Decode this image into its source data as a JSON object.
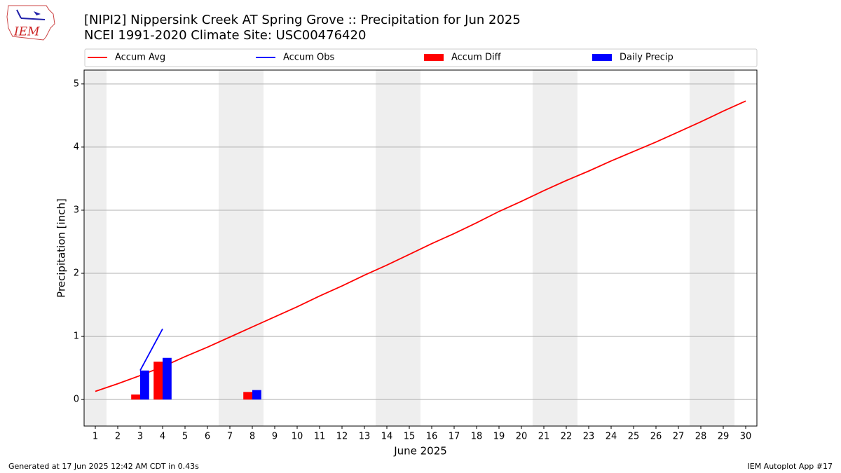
{
  "chart_data": {
    "type": "line",
    "logo_text": "IEM",
    "title": "[NIPI2] Nippersink Creek  AT Spring Grove :: Precipitation for Jun 2025",
    "subtitle": "NCEI 1991-2020 Climate Site: USC00476420",
    "x_label": "June 2025",
    "y_label": "Precipitation [inch]",
    "x": [
      1,
      2,
      3,
      4,
      5,
      6,
      7,
      8,
      9,
      10,
      11,
      12,
      13,
      14,
      15,
      16,
      17,
      18,
      19,
      20,
      21,
      22,
      23,
      24,
      25,
      26,
      27,
      28,
      29,
      30
    ],
    "xlim": [
      0.5,
      30.5
    ],
    "xticks": [
      1,
      2,
      3,
      4,
      5,
      6,
      7,
      8,
      9,
      10,
      11,
      12,
      13,
      14,
      15,
      16,
      17,
      18,
      19,
      20,
      21,
      22,
      23,
      24,
      25,
      26,
      27,
      28,
      29,
      30
    ],
    "ylim": [
      -0.42,
      5.22
    ],
    "yticks": [
      0,
      1,
      2,
      3,
      4,
      5
    ],
    "grid": true,
    "shaded_spans": [
      [
        0.5,
        1.5
      ],
      [
        6.5,
        8.5
      ],
      [
        13.5,
        15.5
      ],
      [
        20.5,
        22.5
      ],
      [
        27.5,
        29.5
      ]
    ],
    "shade_color": "#eeeeee",
    "series": [
      {
        "name": "Accum Avg",
        "color": "#ff0000",
        "kind": "line",
        "values": [
          0.13,
          0.25,
          0.38,
          0.52,
          0.68,
          0.83,
          0.99,
          1.15,
          1.31,
          1.47,
          1.64,
          1.8,
          1.97,
          2.13,
          2.3,
          2.47,
          2.63,
          2.8,
          2.98,
          3.14,
          3.31,
          3.47,
          3.62,
          3.78,
          3.93,
          4.08,
          4.24,
          4.4,
          4.57,
          4.73
        ]
      },
      {
        "name": "Accum Obs",
        "color": "#0000ff",
        "kind": "line",
        "values": [
          null,
          null,
          0.46,
          1.12,
          null,
          null,
          null,
          null,
          null,
          null,
          null,
          null,
          null,
          null,
          null,
          null,
          null,
          null,
          null,
          null,
          null,
          null,
          null,
          null,
          null,
          null,
          null,
          null,
          null,
          null
        ]
      },
      {
        "name": "Accum Diff",
        "color": "#ff0000",
        "kind": "bar",
        "values": [
          null,
          null,
          0.08,
          0.6,
          null,
          null,
          null,
          0.12,
          null,
          null,
          null,
          null,
          null,
          null,
          null,
          null,
          null,
          null,
          null,
          null,
          null,
          null,
          null,
          null,
          null,
          null,
          null,
          null,
          null,
          null
        ]
      },
      {
        "name": "Daily Precip",
        "color": "#0000ff",
        "kind": "bar",
        "values": [
          null,
          null,
          0.46,
          0.66,
          null,
          null,
          null,
          0.15,
          null,
          null,
          null,
          null,
          null,
          null,
          null,
          null,
          null,
          null,
          null,
          null,
          null,
          null,
          null,
          null,
          null,
          null,
          null,
          null,
          null,
          null
        ]
      }
    ],
    "footer_left": "Generated at 17 Jun 2025 12:42 AM CDT in 0.43s",
    "footer_right": "IEM Autoplot App #17"
  }
}
